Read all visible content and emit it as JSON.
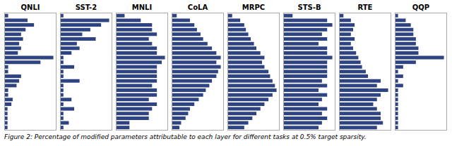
{
  "chart_data": [
    {
      "type": "bar",
      "title": "QNLI",
      "orientation": "horizontal",
      "categories": [
        null,
        null,
        null,
        null,
        null,
        null,
        null,
        null,
        null,
        null,
        null,
        null,
        null,
        null,
        null,
        null,
        null,
        null,
        null,
        null,
        null,
        null,
        null,
        null,
        null
      ],
      "values": [
        0.5,
        3.5,
        4.5,
        3.2,
        2.5,
        2.8,
        2.2,
        2.5,
        2.0,
        7.5,
        5.5,
        0.5,
        0.5,
        2.5,
        2.2,
        1.8,
        0.5,
        0.5,
        1.2,
        1.0,
        0.4,
        0.4,
        0.4,
        0.4,
        0.4
      ],
      "color": "#2e4482",
      "xlim": [
        0,
        7.875
      ],
      "grid": false,
      "tick_labels": false
    },
    {
      "type": "bar",
      "title": "SST-2",
      "orientation": "horizontal",
      "categories": [
        null,
        null,
        null,
        null,
        null,
        null,
        null,
        null,
        null,
        null,
        null,
        null,
        null,
        null,
        null,
        null,
        null,
        null,
        null,
        null,
        null,
        null,
        null,
        null,
        null
      ],
      "values": [
        0.5,
        9.0,
        7.5,
        5.5,
        4.0,
        6.5,
        3.0,
        3.5,
        2.0,
        0.5,
        0.5,
        2.5,
        0.5,
        0.5,
        3.5,
        0.5,
        0.5,
        0.5,
        2.0,
        0.5,
        2.5,
        0.5,
        0.5,
        1.5,
        0.5
      ],
      "color": "#2e4482",
      "xlim": [
        0,
        9.45
      ],
      "grid": false,
      "tick_labels": false
    },
    {
      "type": "bar",
      "title": "MNLI",
      "orientation": "horizontal",
      "categories": [
        null,
        null,
        null,
        null,
        null,
        null,
        null,
        null,
        null,
        null,
        null,
        null,
        null,
        null,
        null,
        null,
        null,
        null,
        null,
        null,
        null,
        null,
        null,
        null,
        null
      ],
      "values": [
        0.5,
        1.5,
        2.2,
        2.2,
        2.5,
        2.0,
        2.2,
        2.5,
        2.5,
        3.0,
        2.8,
        2.5,
        2.5,
        2.5,
        2.5,
        2.2,
        2.5,
        2.5,
        2.0,
        2.5,
        2.2,
        2.0,
        2.0,
        0.8,
        0.8
      ],
      "color": "#2e4482",
      "xlim": [
        0,
        3.15
      ],
      "grid": false,
      "tick_labels": false
    },
    {
      "type": "bar",
      "title": "CoLA",
      "orientation": "horizontal",
      "categories": [
        null,
        null,
        null,
        null,
        null,
        null,
        null,
        null,
        null,
        null,
        null,
        null,
        null,
        null,
        null,
        null,
        null,
        null,
        null,
        null,
        null,
        null,
        null,
        null,
        null
      ],
      "values": [
        0.5,
        2.0,
        2.5,
        2.8,
        3.2,
        3.5,
        4.0,
        4.5,
        5.0,
        5.5,
        5.0,
        5.5,
        5.2,
        5.0,
        4.5,
        4.2,
        3.8,
        3.5,
        3.0,
        2.5,
        2.0,
        1.8,
        1.5,
        1.0,
        0.8
      ],
      "color": "#2e4482",
      "xlim": [
        0,
        5.775
      ],
      "grid": false,
      "tick_labels": false
    },
    {
      "type": "bar",
      "title": "MRPC",
      "orientation": "horizontal",
      "categories": [
        null,
        null,
        null,
        null,
        null,
        null,
        null,
        null,
        null,
        null,
        null,
        null,
        null,
        null,
        null,
        null,
        null,
        null,
        null,
        null,
        null,
        null,
        null,
        null,
        null
      ],
      "values": [
        0.5,
        1.5,
        2.0,
        2.2,
        2.5,
        2.8,
        3.2,
        3.5,
        4.0,
        4.5,
        4.2,
        4.5,
        5.0,
        5.2,
        5.5,
        5.8,
        6.0,
        5.5,
        5.0,
        4.5,
        4.0,
        3.5,
        3.0,
        2.5,
        2.0
      ],
      "color": "#2e4482",
      "xlim": [
        0,
        6.3
      ],
      "grid": false,
      "tick_labels": false
    },
    {
      "type": "bar",
      "title": "STS-B",
      "orientation": "horizontal",
      "categories": [
        null,
        null,
        null,
        null,
        null,
        null,
        null,
        null,
        null,
        null,
        null,
        null,
        null,
        null,
        null,
        null,
        null,
        null,
        null,
        null,
        null,
        null,
        null,
        null,
        null
      ],
      "values": [
        0.5,
        2.5,
        2.8,
        2.5,
        2.2,
        2.5,
        2.0,
        2.5,
        2.5,
        2.8,
        2.5,
        2.5,
        2.5,
        2.5,
        2.2,
        2.5,
        2.0,
        2.5,
        2.2,
        2.0,
        2.5,
        2.2,
        2.5,
        2.2,
        2.0
      ],
      "color": "#2e4482",
      "xlim": [
        0,
        2.94
      ],
      "grid": false,
      "tick_labels": false
    },
    {
      "type": "bar",
      "title": "RTE",
      "orientation": "horizontal",
      "categories": [
        null,
        null,
        null,
        null,
        null,
        null,
        null,
        null,
        null,
        null,
        null,
        null,
        null,
        null,
        null,
        null,
        null,
        null,
        null,
        null,
        null,
        null,
        null,
        null,
        null
      ],
      "values": [
        0.5,
        1.5,
        2.0,
        1.8,
        1.5,
        2.0,
        1.5,
        1.8,
        2.2,
        2.5,
        2.8,
        3.0,
        3.5,
        3.8,
        5.5,
        5.0,
        6.5,
        5.5,
        5.0,
        4.5,
        5.0,
        5.5,
        5.5,
        5.8,
        5.0
      ],
      "color": "#2e4482",
      "xlim": [
        0,
        6.825
      ],
      "grid": false,
      "tick_labels": false
    },
    {
      "type": "bar",
      "title": "QQP",
      "orientation": "horizontal",
      "categories": [
        null,
        null,
        null,
        null,
        null,
        null,
        null,
        null,
        null,
        null,
        null,
        null,
        null,
        null,
        null,
        null,
        null,
        null,
        null,
        null,
        null,
        null,
        null,
        null,
        null
      ],
      "values": [
        0.5,
        2.0,
        3.0,
        3.5,
        3.5,
        4.0,
        4.0,
        4.5,
        4.5,
        9.5,
        4.0,
        1.5,
        0.5,
        1.5,
        0.5,
        1.5,
        0.5,
        0.5,
        0.5,
        0.5,
        0.5,
        0.5,
        0.5,
        0.5,
        0.5
      ],
      "color": "#2e4482",
      "xlim": [
        0,
        9.975
      ],
      "grid": false,
      "tick_labels": false
    }
  ],
  "caption": "Figure 2: Percentage of modified parameters attributable to each layer for different tasks at 0.5% target sparsity."
}
